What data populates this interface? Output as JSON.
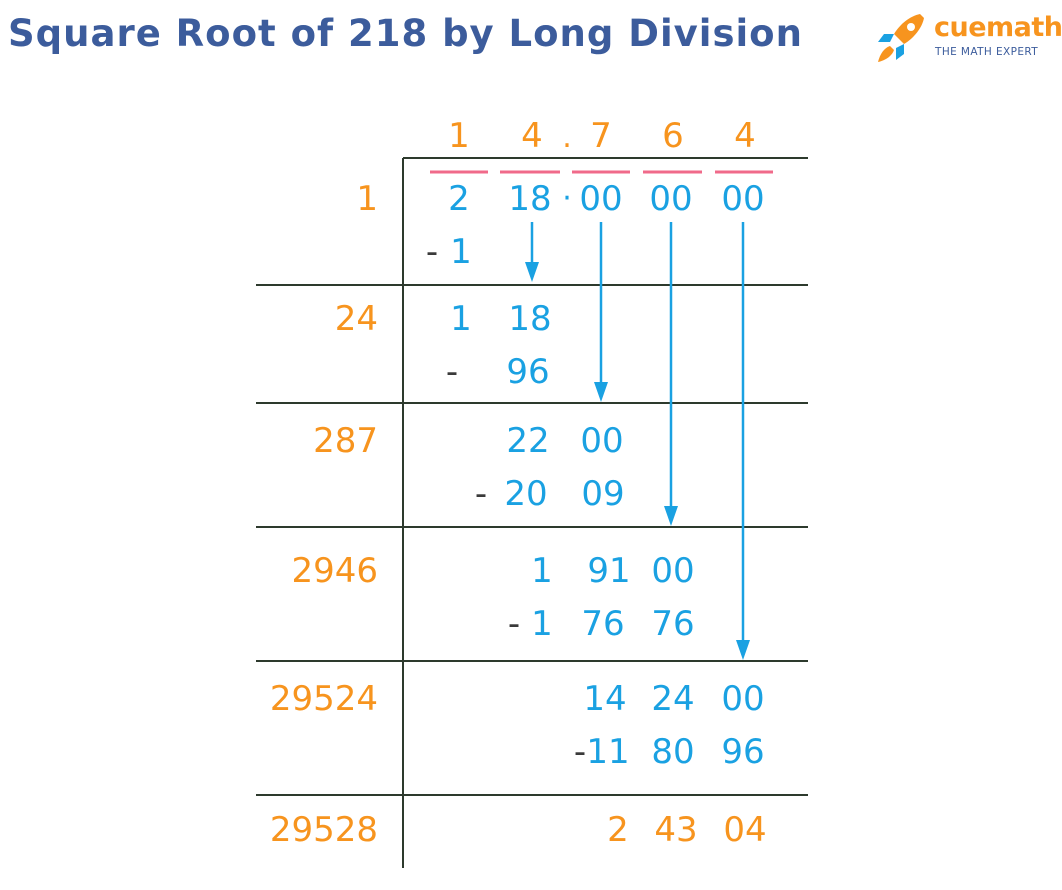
{
  "title": "Square Root of 218 by Long Division",
  "logo": {
    "brand": "cuemath",
    "tagline": "THE MATH EXPERT"
  },
  "colors": {
    "title": "#3c5c9c",
    "orange": "#f7941e",
    "blue": "#1aa1e2",
    "bar": "#f06a8a",
    "line": "#2d3a2d",
    "dark": "#3a3a3a"
  },
  "quotient": {
    "d1": "1",
    "d2": "4",
    "point": ".",
    "d3": "7",
    "d4": "6",
    "d5": "4"
  },
  "dividend": {
    "g1": "2",
    "g2": "18",
    "point": "·",
    "g3": "00",
    "g4": "00",
    "g5": "00"
  },
  "divisors": [
    "1",
    "24",
    "287",
    "2946",
    "29524",
    "29528"
  ],
  "steps": {
    "s1_minus": "-",
    "s1_sub": "1",
    "s2_a": "1",
    "s2_b": "18",
    "s2_minus": "-",
    "s2_sub": "96",
    "s3_a": "22",
    "s3_b": "00",
    "s3_minus": "-",
    "s3_sub_a": "20",
    "s3_sub_b": "09",
    "s4_a": "1",
    "s4_b": "91",
    "s4_c": "00",
    "s4_minus": "-",
    "s4_sub_a": "1",
    "s4_sub_b": "76",
    "s4_sub_c": "76",
    "s5_a": "14",
    "s5_b": "24",
    "s5_c": "00",
    "s5_minus": "-",
    "s5_sub_a": "11",
    "s5_sub_b": "80",
    "s5_sub_c": "96",
    "rem_a": "2",
    "rem_b": "43",
    "rem_c": "04"
  }
}
